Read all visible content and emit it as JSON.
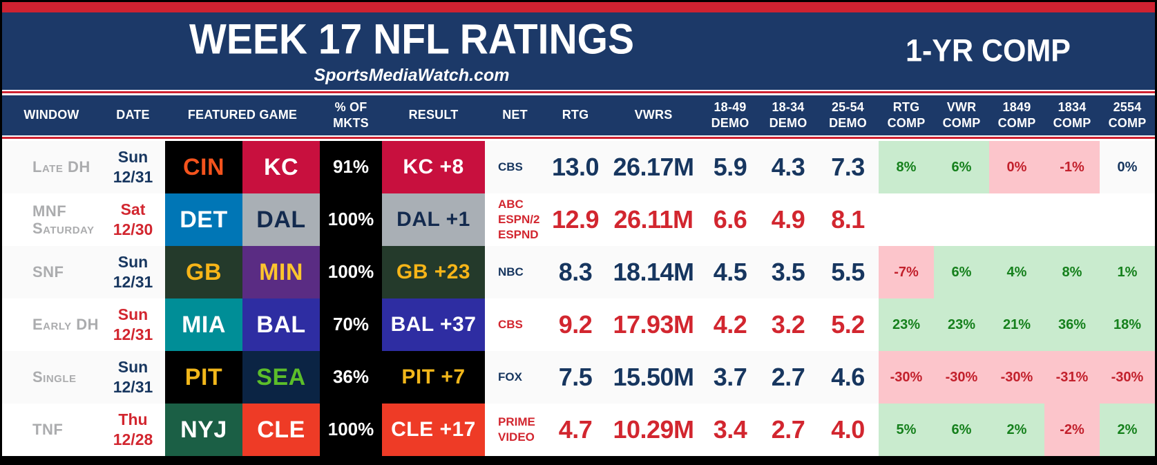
{
  "header": {
    "title": "WEEK 17 NFL RATINGS",
    "subtitle": "SportsMediaWatch.com",
    "comp_label": "1-YR COMP"
  },
  "colors": {
    "band_red": "#CE2231",
    "band_navy": "#1C3968",
    "text_navy": "#17365F",
    "text_red": "#D2262F",
    "window_gray": "#ABACAE",
    "pos_bg": "#C9EBCE",
    "pos_text": "#15801C",
    "neg_bg": "#FCC5CB",
    "neg_text": "#C2202C"
  },
  "chart_data": {
    "type": "table",
    "columns": [
      {
        "key": "window",
        "label": "WINDOW"
      },
      {
        "key": "date",
        "label": "DATE"
      },
      {
        "key": "game",
        "label": "FEATURED GAME"
      },
      {
        "key": "mkts",
        "label": "% OF MKTS"
      },
      {
        "key": "result",
        "label": "RESULT"
      },
      {
        "key": "net",
        "label": "NET"
      },
      {
        "key": "rtg",
        "label": "RTG"
      },
      {
        "key": "vwrs",
        "label": "VWRS"
      },
      {
        "key": "d1849",
        "label": "18-49",
        "label2": "DEMO"
      },
      {
        "key": "d1834",
        "label": "18-34",
        "label2": "DEMO"
      },
      {
        "key": "d2554",
        "label": "25-54",
        "label2": "DEMO"
      },
      {
        "key": "rtgcomp",
        "label": "RTG",
        "label2": "COMP"
      },
      {
        "key": "vwrcomp",
        "label": "VWR",
        "label2": "COMP"
      },
      {
        "key": "c1849",
        "label": "1849",
        "label2": "COMP"
      },
      {
        "key": "c1834",
        "label": "1834",
        "label2": "COMP"
      },
      {
        "key": "c2554",
        "label": "2554",
        "label2": "COMP"
      }
    ],
    "rows": [
      {
        "window_lines": [
          "Late DH"
        ],
        "date_lines": [
          "Sun",
          "12/31"
        ],
        "accent": "navy",
        "away": {
          "abbr": "CIN",
          "bg": "#000000",
          "fg": "#F4531D"
        },
        "home": {
          "abbr": "KC",
          "bg": "#C8103E",
          "fg": "#FFFFFF"
        },
        "mkts": "91%",
        "result": {
          "text": "KC +8",
          "bg": "#C8103E",
          "fg": "#FFFFFF"
        },
        "net_lines": [
          "CBS"
        ],
        "rtg": "13.0",
        "vwrs": "26.17M",
        "demo_1849": "5.9",
        "demo_1834": "4.3",
        "demo_2554": "7.3",
        "comps": [
          {
            "text": "8%",
            "tone": "pos"
          },
          {
            "text": "6%",
            "tone": "pos"
          },
          {
            "text": "0%",
            "tone": "neg"
          },
          {
            "text": "-1%",
            "tone": "neg"
          },
          {
            "text": "0%",
            "tone": "neutral"
          }
        ]
      },
      {
        "window_lines": [
          "MNF",
          "Saturday"
        ],
        "date_lines": [
          "Sat",
          "12/30"
        ],
        "accent": "red",
        "away": {
          "abbr": "DET",
          "bg": "#0076B6",
          "fg": "#FFFFFF"
        },
        "home": {
          "abbr": "DAL",
          "bg": "#A9AFB5",
          "fg": "#132A4E"
        },
        "mkts": "100%",
        "result": {
          "text": "DAL +1",
          "bg": "#A9AFB5",
          "fg": "#132A4E"
        },
        "net_lines": [
          "ABC",
          "ESPN/2",
          "ESPND"
        ],
        "rtg": "12.9",
        "vwrs": "26.11M",
        "demo_1849": "6.6",
        "demo_1834": "4.9",
        "demo_2554": "8.1",
        "comps": [
          {
            "text": "",
            "tone": "blank"
          },
          {
            "text": "",
            "tone": "blank"
          },
          {
            "text": "",
            "tone": "blank"
          },
          {
            "text": "",
            "tone": "blank"
          },
          {
            "text": "",
            "tone": "blank"
          }
        ]
      },
      {
        "window_lines": [
          "SNF"
        ],
        "date_lines": [
          "Sun",
          "12/31"
        ],
        "accent": "navy",
        "away": {
          "abbr": "GB",
          "bg": "#243A2B",
          "fg": "#F7B518"
        },
        "home": {
          "abbr": "MIN",
          "bg": "#5A2C83",
          "fg": "#FDC52E"
        },
        "mkts": "100%",
        "result": {
          "text": "GB +23",
          "bg": "#243A2B",
          "fg": "#F7B518"
        },
        "net_lines": [
          "NBC"
        ],
        "rtg": "8.3",
        "vwrs": "18.14M",
        "demo_1849": "4.5",
        "demo_1834": "3.5",
        "demo_2554": "5.5",
        "comps": [
          {
            "text": "-7%",
            "tone": "neg"
          },
          {
            "text": "6%",
            "tone": "pos"
          },
          {
            "text": "4%",
            "tone": "pos"
          },
          {
            "text": "8%",
            "tone": "pos"
          },
          {
            "text": "1%",
            "tone": "pos"
          }
        ]
      },
      {
        "window_lines": [
          "Early DH"
        ],
        "date_lines": [
          "Sun",
          "12/31"
        ],
        "accent": "red",
        "away": {
          "abbr": "MIA",
          "bg": "#008E97",
          "fg": "#FFFFFF"
        },
        "home": {
          "abbr": "BAL",
          "bg": "#2E2DA2",
          "fg": "#FFFFFF"
        },
        "mkts": "70%",
        "result": {
          "text": "BAL +37",
          "bg": "#2E2DA2",
          "fg": "#FFFFFF"
        },
        "net_lines": [
          "CBS"
        ],
        "rtg": "9.2",
        "vwrs": "17.93M",
        "demo_1849": "4.2",
        "demo_1834": "3.2",
        "demo_2554": "5.2",
        "comps": [
          {
            "text": "23%",
            "tone": "pos"
          },
          {
            "text": "23%",
            "tone": "pos"
          },
          {
            "text": "21%",
            "tone": "pos"
          },
          {
            "text": "36%",
            "tone": "pos"
          },
          {
            "text": "18%",
            "tone": "pos"
          }
        ]
      },
      {
        "window_lines": [
          "Single"
        ],
        "date_lines": [
          "Sun",
          "12/31"
        ],
        "accent": "navy",
        "away": {
          "abbr": "PIT",
          "bg": "#000000",
          "fg": "#F2B71A"
        },
        "home": {
          "abbr": "SEA",
          "bg": "#0B2444",
          "fg": "#5CBE2A"
        },
        "mkts": "36%",
        "result": {
          "text": "PIT +7",
          "bg": "#000000",
          "fg": "#F2B71A"
        },
        "net_lines": [
          "FOX"
        ],
        "rtg": "7.5",
        "vwrs": "15.50M",
        "demo_1849": "3.7",
        "demo_1834": "2.7",
        "demo_2554": "4.6",
        "comps": [
          {
            "text": "-30%",
            "tone": "neg"
          },
          {
            "text": "-30%",
            "tone": "neg"
          },
          {
            "text": "-30%",
            "tone": "neg"
          },
          {
            "text": "-31%",
            "tone": "neg"
          },
          {
            "text": "-30%",
            "tone": "neg"
          }
        ]
      },
      {
        "window_lines": [
          "TNF"
        ],
        "date_lines": [
          "Thu",
          "12/28"
        ],
        "accent": "red",
        "away": {
          "abbr": "NYJ",
          "bg": "#1B5F45",
          "fg": "#FFFFFF"
        },
        "home": {
          "abbr": "CLE",
          "bg": "#EE3B26",
          "fg": "#FFFFFF"
        },
        "mkts": "100%",
        "result": {
          "text": "CLE +17",
          "bg": "#EE3B26",
          "fg": "#FFFFFF"
        },
        "net_lines": [
          "PRIME",
          "VIDEO"
        ],
        "rtg": "4.7",
        "vwrs": "10.29M",
        "demo_1849": "3.4",
        "demo_1834": "2.7",
        "demo_2554": "4.0",
        "comps": [
          {
            "text": "5%",
            "tone": "pos"
          },
          {
            "text": "6%",
            "tone": "pos"
          },
          {
            "text": "2%",
            "tone": "pos"
          },
          {
            "text": "-2%",
            "tone": "neg"
          },
          {
            "text": "2%",
            "tone": "pos"
          }
        ]
      }
    ]
  }
}
